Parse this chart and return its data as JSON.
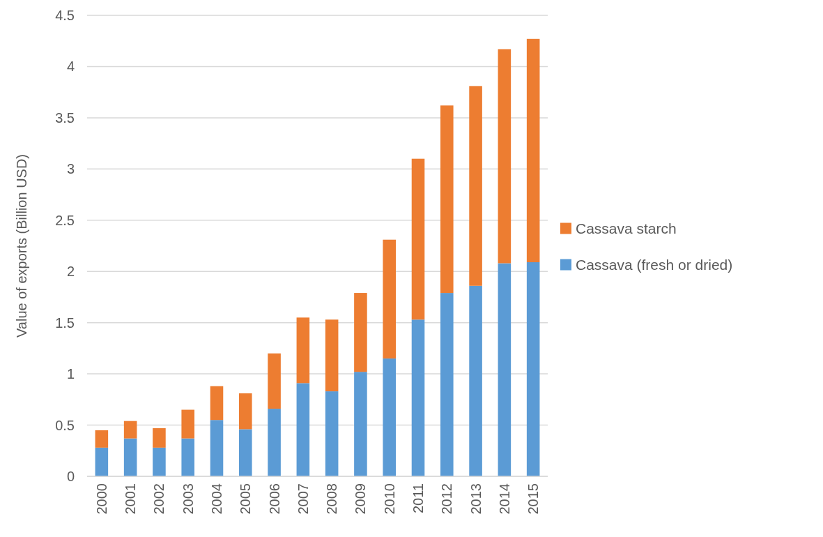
{
  "chart_data": {
    "type": "bar",
    "stacked": true,
    "ylabel": "Value of exports (Billion USD)",
    "categories": [
      "2000",
      "2001",
      "2002",
      "2003",
      "2004",
      "2005",
      "2006",
      "2007",
      "2008",
      "2009",
      "2010",
      "2011",
      "2012",
      "2013",
      "2014",
      "2015"
    ],
    "series": [
      {
        "name": "Cassava (fresh or dried)",
        "color": "#5b9bd5",
        "values": [
          0.28,
          0.37,
          0.28,
          0.37,
          0.55,
          0.46,
          0.66,
          0.91,
          0.83,
          1.02,
          1.15,
          1.53,
          1.79,
          1.86,
          2.08,
          2.09
        ]
      },
      {
        "name": "Cassava starch",
        "color": "#ed7d31",
        "values": [
          0.17,
          0.17,
          0.19,
          0.28,
          0.33,
          0.35,
          0.54,
          0.64,
          0.7,
          0.77,
          1.16,
          1.57,
          1.83,
          1.95,
          2.09,
          2.18
        ]
      }
    ],
    "ylim": [
      0,
      4.5
    ],
    "yticks": [
      0,
      0.5,
      1,
      1.5,
      2,
      2.5,
      3,
      3.5,
      4,
      4.5
    ],
    "grid": "y",
    "legend": "right"
  }
}
